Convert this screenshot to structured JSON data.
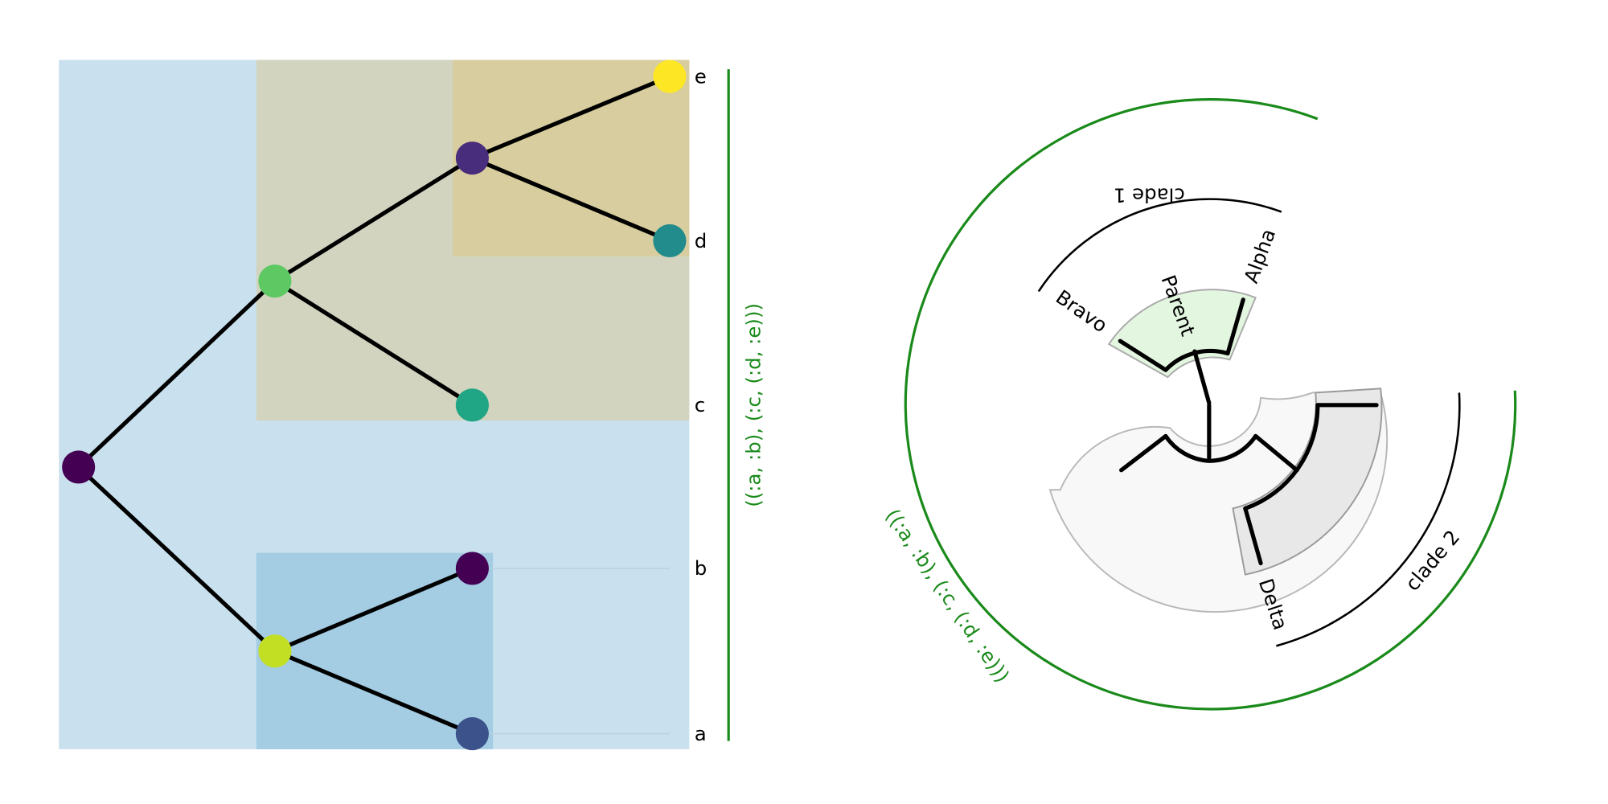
{
  "left_tree": {
    "leaf_labels": [
      "e",
      "d",
      "c",
      "b",
      "a"
    ],
    "clade_label": "((:a, :b), (:c, (:d, :e)))"
  },
  "right_tree": {
    "arc_labels": [
      "clade 1",
      "clade 2"
    ],
    "node_labels": [
      "Alpha",
      "Bravo",
      "Parent",
      "Delta"
    ],
    "clade_label": "((:a, :b), (:c, (:d, :e)))"
  }
}
